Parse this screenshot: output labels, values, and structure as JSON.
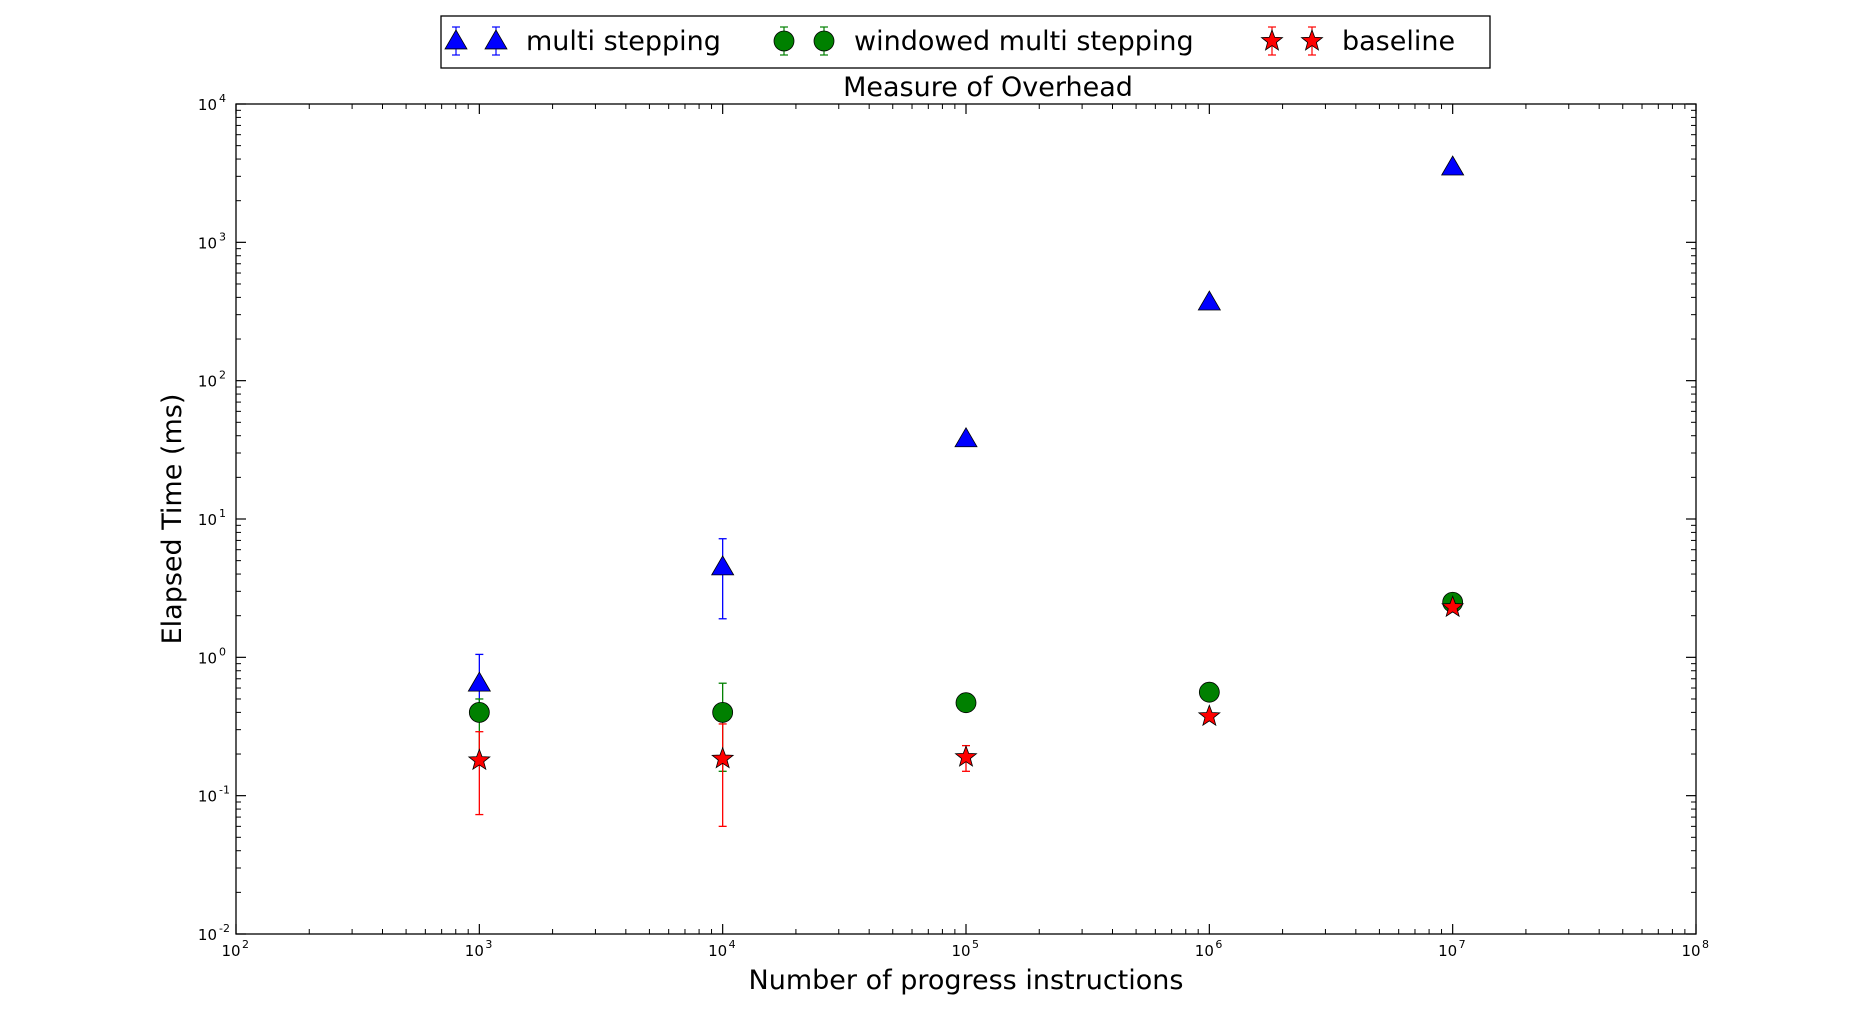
{
  "chart_data": {
    "type": "scatter",
    "title": "Measure of Overhead",
    "xlabel": "Number of progress instructions",
    "ylabel": "Elapsed Time (ms)",
    "x_scale": "log",
    "y_scale": "log",
    "xlim": [
      100,
      100000000
    ],
    "ylim": [
      0.01,
      10000
    ],
    "x_ticks": [
      {
        "base": "10",
        "exp": "2",
        "value": 100
      },
      {
        "base": "10",
        "exp": "3",
        "value": 1000
      },
      {
        "base": "10",
        "exp": "4",
        "value": 10000
      },
      {
        "base": "10",
        "exp": "5",
        "value": 100000
      },
      {
        "base": "10",
        "exp": "6",
        "value": 1000000
      },
      {
        "base": "10",
        "exp": "7",
        "value": 10000000
      },
      {
        "base": "10",
        "exp": "8",
        "value": 100000000
      }
    ],
    "y_ticks": [
      {
        "base": "10",
        "exp": "-2",
        "value": 0.01
      },
      {
        "base": "10",
        "exp": "-1",
        "value": 0.1
      },
      {
        "base": "10",
        "exp": "0",
        "value": 1
      },
      {
        "base": "10",
        "exp": "1",
        "value": 10
      },
      {
        "base": "10",
        "exp": "2",
        "value": 100
      },
      {
        "base": "10",
        "exp": "3",
        "value": 1000
      },
      {
        "base": "10",
        "exp": "4",
        "value": 10000
      }
    ],
    "grid": false,
    "legend_position": "top-center",
    "series": [
      {
        "name": "multi stepping",
        "marker": "triangle",
        "color": "#0000ff",
        "points": [
          {
            "x": 1000,
            "y": 0.65,
            "err_low": 0.35,
            "err_high": 1.05
          },
          {
            "x": 10000,
            "y": 4.5,
            "err_low": 1.9,
            "err_high": 7.2
          },
          {
            "x": 100000,
            "y": 38,
            "err_low": 36,
            "err_high": 40
          },
          {
            "x": 1000000,
            "y": 370,
            "err_low": 360,
            "err_high": 380
          },
          {
            "x": 10000000,
            "y": 3500,
            "err_low": 3450,
            "err_high": 3550
          }
        ]
      },
      {
        "name": "windowed multi stepping",
        "marker": "circle",
        "color": "#008000",
        "points": [
          {
            "x": 1000,
            "y": 0.4,
            "err_low": 0.18,
            "err_high": 0.5
          },
          {
            "x": 10000,
            "y": 0.4,
            "err_low": 0.15,
            "err_high": 0.65
          },
          {
            "x": 100000,
            "y": 0.47,
            "err_low": 0.44,
            "err_high": 0.5
          },
          {
            "x": 1000000,
            "y": 0.56,
            "err_low": 0.54,
            "err_high": 0.58
          },
          {
            "x": 10000000,
            "y": 2.5,
            "err_low": 2.4,
            "err_high": 2.6
          }
        ]
      },
      {
        "name": "baseline",
        "marker": "star",
        "color": "#ff0000",
        "points": [
          {
            "x": 1000,
            "y": 0.18,
            "err_low": 0.073,
            "err_high": 0.29
          },
          {
            "x": 10000,
            "y": 0.185,
            "err_low": 0.06,
            "err_high": 0.33
          },
          {
            "x": 100000,
            "y": 0.19,
            "err_low": 0.15,
            "err_high": 0.23
          },
          {
            "x": 1000000,
            "y": 0.375,
            "err_low": 0.36,
            "err_high": 0.39
          },
          {
            "x": 10000000,
            "y": 2.3,
            "err_low": 2.2,
            "err_high": 2.4
          }
        ]
      }
    ]
  }
}
